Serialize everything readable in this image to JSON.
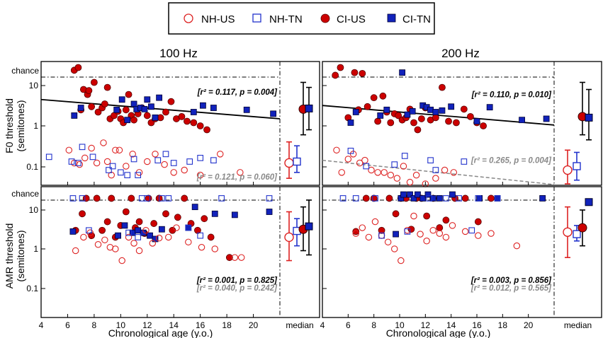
{
  "legend": {
    "entries": [
      {
        "label": "NH-US",
        "marker": "circle",
        "filled": false,
        "color": "#dd2222"
      },
      {
        "label": "NH-TN",
        "marker": "square",
        "filled": false,
        "color": "#2233cc"
      },
      {
        "label": "CI-US",
        "marker": "circle",
        "filled": true,
        "color": "#cc0000"
      },
      {
        "label": "CI-TN",
        "marker": "square",
        "filled": true,
        "color": "#1122bb"
      }
    ]
  },
  "colors": {
    "us": "#cc1111",
    "tn": "#1122bb",
    "black": "#000000",
    "gray": "#888888"
  },
  "chart_data": [
    {
      "type": "scatter",
      "panel": "F0-100",
      "column_title": "100 Hz",
      "row_label": "F0 threshold",
      "row_units": "(semitones)",
      "ylim": [
        0.03,
        30
      ],
      "xlim": [
        4,
        22
      ],
      "chance_label": "chance",
      "chance_value": 16,
      "tick_labels": [
        "10",
        "1",
        "0.1"
      ],
      "x_tick_labels": [],
      "xlabel": "",
      "regressions": [
        {
          "group": "CI",
          "x": [
            4,
            22
          ],
          "y": [
            4.5,
            1.5
          ],
          "style": "solid"
        }
      ],
      "annotations": [
        {
          "text": "[r² = 0.117, p = 0.004]",
          "color": "black",
          "anchor_x": 22,
          "anchor_y": 7
        },
        {
          "text": "[r² = 0.121, p = 0.060]",
          "color": "gray",
          "anchor_x": 22,
          "anchor_y": 0.055
        }
      ],
      "series": [
        {
          "name": "CI-US",
          "x": [
            6.5,
            6.8,
            7.0,
            7.2,
            7.5,
            7.6,
            7.8,
            8.0,
            8.3,
            8.6,
            8.8,
            9.0,
            9.2,
            9.5,
            9.8,
            10.0,
            10.2,
            10.4,
            10.6,
            10.8,
            11.0,
            11.3,
            11.6,
            12.0,
            12.3,
            12.6,
            13.0,
            13.4,
            13.8,
            14.2,
            14.6,
            15.0,
            15.5,
            16.0,
            16.5
          ],
          "y": [
            24,
            28,
            2.5,
            8,
            6,
            7.5,
            3,
            12,
            2.2,
            2.8,
            3.5,
            9,
            1.5,
            1.8,
            2.3,
            1.5,
            1.2,
            2.5,
            6,
            1.8,
            1.4,
            2.0,
            2.8,
            1.8,
            1.2,
            1.5,
            1.6,
            2.2,
            4,
            1.5,
            1.7,
            1.3,
            1.2,
            1.0,
            0.8
          ]
        },
        {
          "name": "CI-TN",
          "x": [
            6.5,
            7.0,
            9.7,
            10.1,
            10.5,
            11.0,
            11.2,
            11.5,
            11.8,
            12.0,
            12.3,
            12.6,
            12.9,
            15.5,
            16.2,
            17.0,
            19.5,
            21.5
          ],
          "y": [
            1.8,
            2.8,
            2.5,
            4.5,
            1.4,
            3.5,
            2.6,
            2.8,
            2.6,
            4.5,
            3.0,
            1.6,
            5,
            2.2,
            3.2,
            2.8,
            2.5,
            2.0
          ]
        },
        {
          "name": "NH-US",
          "x": [
            6.1,
            6.5,
            6.9,
            7.3,
            7.8,
            8.2,
            8.7,
            9.0,
            9.3,
            9.6,
            9.9,
            10.4,
            10.9,
            11.4,
            12.0,
            12.6,
            13.3,
            14.0,
            14.8,
            16.0,
            17.5,
            19.0
          ],
          "y": [
            0.25,
            0.12,
            0.11,
            0.16,
            0.28,
            0.12,
            0.38,
            0.13,
            0.06,
            0.25,
            0.25,
            0.1,
            0.2,
            0.07,
            0.13,
            0.2,
            0.11,
            0.07,
            0.08,
            0.06,
            0.2,
            0.07
          ]
        },
        {
          "name": "NH-TN",
          "x": [
            4.6,
            6.3,
            6.8,
            7.1,
            7.9,
            9.1,
            9.4,
            10.0,
            10.5,
            11.0,
            11.3,
            12.8,
            13.4,
            14.0,
            15.2,
            16.0,
            17.0
          ],
          "y": [
            0.17,
            0.13,
            0.12,
            0.3,
            0.17,
            0.08,
            0.1,
            0.07,
            0.06,
            0.15,
            0.06,
            0.14,
            0.2,
            0.12,
            0.13,
            0.16,
            0.14
          ]
        }
      ],
      "medians": [
        {
          "group": "NH-US",
          "median": 0.12,
          "low": 0.05,
          "high": 0.4
        },
        {
          "group": "NH-TN",
          "median": 0.13,
          "low": 0.07,
          "high": 0.32
        },
        {
          "group": "CI-US",
          "median": 2.6,
          "low": 0.6,
          "high": 12
        },
        {
          "group": "CI-TN",
          "median": 2.7,
          "low": 0.8,
          "high": 9
        }
      ]
    },
    {
      "type": "scatter",
      "panel": "F0-200",
      "column_title": "200 Hz",
      "row_label": "",
      "row_units": "",
      "ylim": [
        0.03,
        30
      ],
      "xlim": [
        4,
        22
      ],
      "chance_label": "",
      "chance_value": 16,
      "tick_labels": [],
      "x_tick_labels": [],
      "xlabel": "",
      "regressions": [
        {
          "group": "CI",
          "x": [
            4,
            22
          ],
          "y": [
            3.2,
            1.05
          ],
          "style": "solid"
        },
        {
          "group": "NH",
          "x": [
            4,
            22
          ],
          "y": [
            0.14,
            0.035
          ],
          "style": "dashed"
        }
      ],
      "annotations": [
        {
          "text": "[r² = 0.110, p = 0.010]",
          "color": "black",
          "anchor_x": 22,
          "anchor_y": 6
        },
        {
          "text": "[r² = 0.265, p = 0.004]",
          "color": "gray",
          "anchor_x": 22,
          "anchor_y": 0.14
        }
      ],
      "series": [
        {
          "name": "CI-US",
          "x": [
            5.0,
            5.4,
            6.0,
            6.5,
            6.8,
            7.1,
            7.5,
            8.0,
            8.3,
            8.7,
            9.0,
            9.3,
            9.6,
            9.9,
            10.2,
            10.5,
            10.8,
            11.1,
            11.4,
            11.7,
            12.0,
            12.4,
            12.8,
            13.3,
            13.8,
            14.4,
            15.0,
            15.5,
            16.0,
            16.5
          ],
          "y": [
            18,
            28,
            1.6,
            21,
            2.5,
            20,
            3.0,
            5.0,
            1.3,
            5.5,
            2.2,
            1.2,
            2.0,
            1.8,
            1.4,
            1.6,
            2.6,
            1.2,
            0.8,
            1.5,
            2.8,
            1.4,
            1.6,
            9,
            1.3,
            1.2,
            2.6,
            1.7,
            1.2,
            1.0
          ]
        },
        {
          "name": "CI-TN",
          "x": [
            6.2,
            6.6,
            8.5,
            9.0,
            10.2,
            10.6,
            11.0,
            11.8,
            12.1,
            12.4,
            12.8,
            13.3,
            14.0,
            16.0,
            17.0,
            19.5,
            21.4
          ],
          "y": [
            1.2,
            2.2,
            1.8,
            2.5,
            21,
            1.9,
            2.3,
            3.2,
            2.9,
            2.5,
            2.2,
            2.4,
            3.0,
            1.3,
            2.9,
            1.4,
            1.5
          ]
        },
        {
          "name": "NH-US",
          "x": [
            5.1,
            5.5,
            6.0,
            6.4,
            6.9,
            7.3,
            7.8,
            8.3,
            8.8,
            9.3,
            9.8,
            10.3,
            10.8,
            11.3,
            12.0,
            12.8,
            13.5,
            14.2
          ],
          "y": [
            0.25,
            0.07,
            0.15,
            0.2,
            0.12,
            0.14,
            0.08,
            0.07,
            0.07,
            0.06,
            0.05,
            0.1,
            0.04,
            0.06,
            0.03,
            0.05,
            0.08,
            0.07
          ]
        },
        {
          "name": "NH-TN",
          "x": [
            6.2,
            7.4,
            9.6,
            10.4,
            12.4,
            12.8,
            15.0
          ],
          "y": [
            0.24,
            0.1,
            0.11,
            0.18,
            0.14,
            0.08,
            0.13
          ]
        }
      ],
      "medians": [
        {
          "group": "NH-US",
          "median": 0.08,
          "low": 0.035,
          "high": 0.25
        },
        {
          "group": "NH-TN",
          "median": 0.1,
          "low": 0.045,
          "high": 0.22
        },
        {
          "group": "CI-US",
          "median": 1.7,
          "low": 0.6,
          "high": 12
        },
        {
          "group": "CI-TN",
          "median": 1.6,
          "low": 0.45,
          "high": 8
        }
      ]
    },
    {
      "type": "scatter",
      "panel": "AMR-100",
      "column_title": "",
      "row_label": "AMR threshold",
      "row_units": "(semitones)",
      "ylim": [
        0.03,
        30
      ],
      "xlim": [
        4,
        22
      ],
      "chance_label": "chance",
      "chance_value": 16,
      "tick_labels": [
        "10",
        "1",
        "0.1"
      ],
      "x_tick_labels": [
        "4",
        "6",
        "8",
        "10",
        "12",
        "14",
        "16",
        "18",
        "20"
      ],
      "xlabel": "Chronological age (y.o.)",
      "median_label": "median",
      "regressions": [],
      "annotations": [
        {
          "text": "[r² = 0.001, p = 0.825]",
          "color": "black",
          "anchor_x": 22,
          "anchor_y": 0.16
        },
        {
          "text": "[r² = 0.040, p = 0.242]",
          "color": "gray",
          "anchor_x": 22,
          "anchor_y": 0.1
        }
      ],
      "series": [
        {
          "name": "CI-US",
          "x": [
            6.6,
            7.1,
            7.4,
            7.8,
            8.2,
            8.6,
            9.0,
            9.3,
            9.6,
            10.0,
            10.4,
            10.8,
            11.1,
            11.4,
            11.8,
            12.1,
            12.5,
            12.9,
            13.4,
            13.9,
            14.3,
            14.8,
            15.3,
            15.8,
            16.3,
            16.8,
            18.2
          ],
          "y": [
            3.0,
            8.0,
            20,
            2.2,
            20,
            3.0,
            5.0,
            20,
            2.0,
            4.0,
            9.0,
            20,
            3.5,
            5.0,
            2.5,
            20,
            4.5,
            20,
            8.0,
            3.0,
            6.5,
            20,
            4.5,
            3.0,
            6.0,
            2.0,
            0.6
          ]
        },
        {
          "name": "CI-TN",
          "x": [
            6.4,
            9.8,
            10.3,
            10.9,
            11.3,
            11.7,
            12.2,
            12.6,
            13.1,
            15.1,
            15.6,
            17.1,
            18.6,
            21.2
          ],
          "y": [
            2.8,
            2.2,
            4.0,
            2.6,
            3.0,
            2.6,
            2.2,
            1.8,
            3.2,
            3.5,
            12,
            8.0,
            7.5,
            9.0
          ]
        },
        {
          "name": "NH-US",
          "x": [
            6.6,
            7.2,
            7.7,
            8.3,
            8.8,
            9.2,
            9.6,
            10.1,
            10.6,
            11.0,
            11.4,
            11.9,
            12.4,
            12.9,
            13.6,
            14.2,
            15.1,
            16.1,
            17.1,
            18.6,
            19.1
          ],
          "y": [
            0.9,
            2.0,
            2.6,
            1.3,
            1.7,
            1.1,
            1.0,
            0.5,
            2.0,
            1.4,
            0.9,
            3.0,
            1.4,
            1.9,
            2.0,
            3.5,
            1.5,
            1.1,
            1.0,
            0.6,
            0.6
          ]
        },
        {
          "name": "NH-TN",
          "x": [
            6.4,
            7.1,
            7.6,
            10.6,
            11.3,
            11.6,
            12.0,
            13.1,
            13.6,
            15.1,
            16.0,
            17.6,
            21.2
          ],
          "y": [
            20,
            20,
            3.0,
            2.6,
            2.0,
            20,
            20,
            20,
            20,
            3.5,
            2.2,
            20,
            20
          ]
        }
      ],
      "medians": [
        {
          "group": "NH-US",
          "median": 2.0,
          "low": 0.5,
          "high": 9
        },
        {
          "group": "NH-TN",
          "median": 2.9,
          "low": 1.2,
          "high": 6
        },
        {
          "group": "CI-US",
          "median": 3.2,
          "low": 0.9,
          "high": 12
        },
        {
          "group": "CI-TN",
          "median": 3.8,
          "low": 0.7,
          "high": 18
        }
      ]
    },
    {
      "type": "scatter",
      "panel": "AMR-200",
      "column_title": "",
      "row_label": "",
      "row_units": "",
      "ylim": [
        0.03,
        30
      ],
      "xlim": [
        4,
        22
      ],
      "chance_label": "",
      "chance_value": 16,
      "tick_labels": [],
      "x_tick_labels": [
        "4",
        "6",
        "8",
        "10",
        "12",
        "14",
        "16",
        "18",
        "20"
      ],
      "xlabel": "Chronological age (y.o.)",
      "median_label": "median",
      "regressions": [],
      "annotations": [
        {
          "text": "[r² = 0.003, p = 0.856]",
          "color": "black",
          "anchor_x": 22,
          "anchor_y": 0.16
        },
        {
          "text": "[r² = 0.012, p = 0.565]",
          "color": "gray",
          "anchor_x": 22,
          "anchor_y": 0.1
        }
      ],
      "series": [
        {
          "name": "CI-US",
          "x": [
            6.6,
            7.4,
            8.0,
            8.6,
            9.2,
            9.7,
            10.1,
            10.5,
            10.9,
            11.3,
            11.7,
            12.1,
            12.6,
            13.1,
            13.6,
            14.3,
            15.1,
            16.1,
            17.1
          ],
          "y": [
            2.8,
            20,
            20,
            3.0,
            20,
            8.0,
            20,
            20,
            3.2,
            20,
            20,
            7.0,
            20,
            3.5,
            5.5,
            20,
            20,
            5.0,
            20
          ]
        },
        {
          "name": "CI-TN",
          "x": [
            9.7,
            10.1,
            10.3,
            10.8,
            11.1,
            11.4,
            11.8,
            12.2,
            12.6,
            13.1,
            14.1,
            16.2,
            17.6,
            21.1
          ],
          "y": [
            2.4,
            20,
            25,
            25,
            20,
            25,
            20,
            25,
            20,
            20,
            25,
            20,
            20,
            20
          ]
        },
        {
          "name": "NH-US",
          "x": [
            6.6,
            7.1,
            7.6,
            8.1,
            8.6,
            9.1,
            9.6,
            10.1,
            10.6,
            11.1,
            11.6,
            12.1,
            12.6,
            13.1,
            13.6,
            14.1,
            15.1,
            16.1,
            17.1,
            19.1
          ],
          "y": [
            2.5,
            3.5,
            2.0,
            5.0,
            2.2,
            1.5,
            1.0,
            0.5,
            3.0,
            7.0,
            2.4,
            1.6,
            3.0,
            2.5,
            2.0,
            4.0,
            2.8,
            2.2,
            2.5,
            1.2
          ]
        },
        {
          "name": "NH-TN",
          "x": [
            5.6,
            6.6,
            8.1,
            8.6,
            10.6,
            12.3,
            13.6,
            14.6,
            15.6,
            16.1,
            17.6
          ],
          "y": [
            20,
            20,
            20,
            2.2,
            2.8,
            20,
            20,
            20,
            3.0,
            20,
            20
          ]
        }
      ],
      "medians": [
        {
          "group": "NH-US",
          "median": 2.7,
          "low": 0.6,
          "high": 12
        },
        {
          "group": "NH-TN",
          "median": 2.4,
          "low": 1.6,
          "high": 4
        },
        {
          "group": "CI-US",
          "median": 3.5,
          "low": 1.2,
          "high": 10
        },
        {
          "group": "CI-TN",
          "median": 16,
          "low": 16,
          "high": 16
        }
      ]
    }
  ]
}
